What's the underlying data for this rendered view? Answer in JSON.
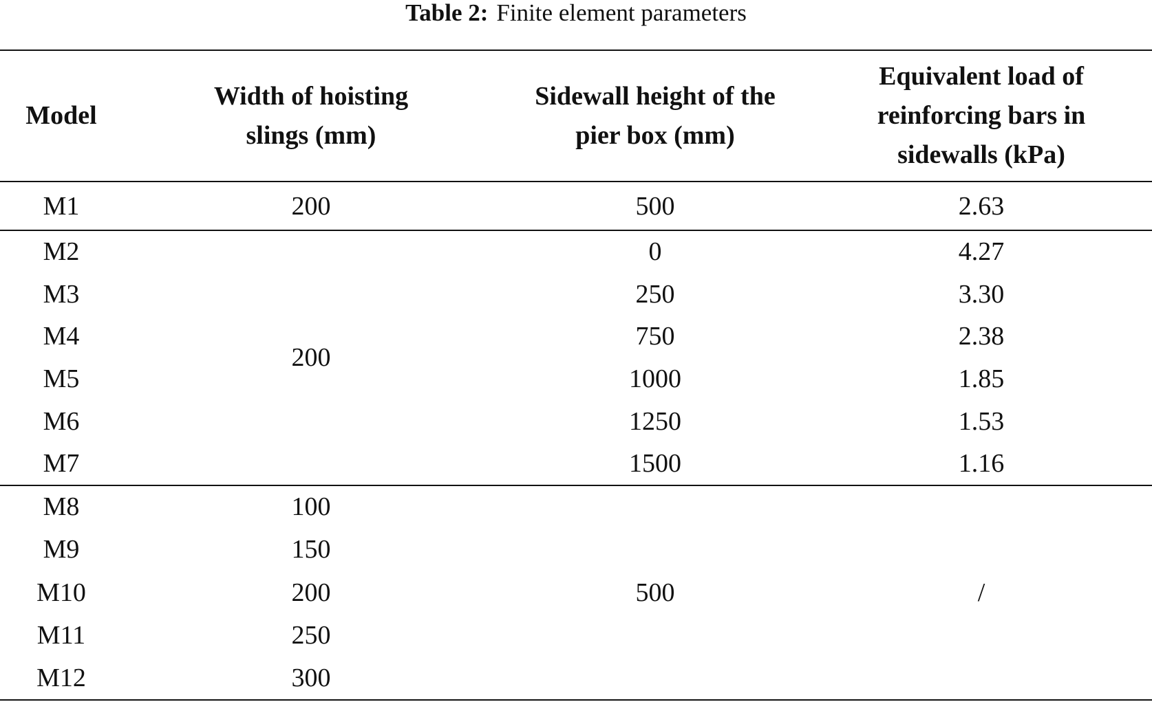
{
  "caption": {
    "label": "Table 2:",
    "text": "Finite element parameters"
  },
  "table": {
    "header": [
      [
        "Model"
      ],
      [
        "Width of hoisting",
        "slings (mm)"
      ],
      [
        "Sidewall height of the",
        "pier box (mm)"
      ],
      [
        "Equivalent load of",
        "reinforcing bars in",
        "sidewalls (kPa)"
      ]
    ],
    "groups": [
      {
        "model": [
          "M1"
        ],
        "width": [
          "200"
        ],
        "height": [
          "500"
        ],
        "load": [
          "2.63"
        ]
      },
      {
        "model": [
          "M2",
          "M3",
          "M4",
          "M5",
          "M6",
          "M7"
        ],
        "width": "200",
        "height": [
          "0",
          "250",
          "750",
          "1000",
          "1250",
          "1500"
        ],
        "load": [
          "4.27",
          "3.30",
          "2.38",
          "1.85",
          "1.53",
          "1.16"
        ]
      },
      {
        "model": [
          "M8",
          "M9",
          "M10",
          "M11",
          "M12"
        ],
        "width": [
          "100",
          "150",
          "200",
          "250",
          "300"
        ],
        "height": "500",
        "load": "/"
      }
    ]
  }
}
